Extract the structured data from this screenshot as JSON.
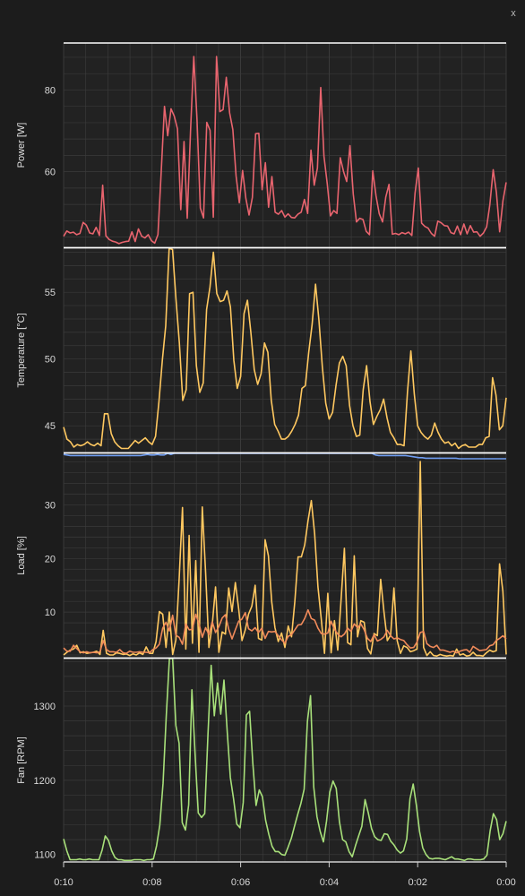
{
  "window": {
    "close_label": "x"
  },
  "colors": {
    "background": "#222222",
    "grid": "#3a3a3a",
    "frame": "#ffffff",
    "power": "#e8646e",
    "temperature": "#ffc860",
    "load_gpu": "#ffc860",
    "load_cpu": "#f08a5a",
    "load_top": "#6f9cf0",
    "fan": "#a8e07a"
  },
  "chart_data": [
    {
      "type": "line",
      "ylabel": "Power [W]",
      "yticks": [
        60,
        80
      ],
      "ylim": [
        41.5,
        91.5
      ],
      "xlim": [
        10,
        0
      ],
      "series": [
        {
          "values": [
            44.2,
            45.5,
            45.0,
            45.2,
            44.6,
            44.9,
            47.6,
            46.9,
            45.0,
            44.8,
            46.4,
            44.4,
            56.7,
            44.3,
            43.4,
            43.0,
            42.8,
            42.4,
            42.7,
            42.9,
            43.0,
            45.3,
            42.9,
            46.0,
            44.2,
            43.8,
            44.6,
            43.1,
            42.5,
            44.6,
            60.2,
            76.0,
            68.8,
            75.4,
            73.6,
            70.5,
            50.7,
            67.4,
            48.6,
            70.1,
            88.2,
            72.8,
            51.1,
            48.7,
            72.1,
            70.1,
            48.9,
            88.2,
            74.7,
            75.2,
            83.1,
            74.4,
            70.3,
            59.0,
            52.4,
            60.3,
            53.5,
            49.4,
            53.7,
            69.3,
            69.4,
            55.6,
            62.2,
            51.3,
            58.8,
            50.1,
            49.6,
            50.5,
            48.9,
            49.7,
            48.8,
            48.7,
            49.6,
            50.1,
            53.2,
            49.8,
            65.3,
            56.7,
            60.9,
            80.6,
            63.8,
            57.2,
            49.2,
            50.5,
            49.8,
            63.4,
            60.1,
            57.6,
            66.4,
            54.5,
            47.7,
            48.6,
            48.3,
            45.4,
            44.6,
            60.2,
            54.1,
            49.7,
            47.7,
            53.8,
            56.9,
            44.7,
            44.9,
            44.6,
            45.1,
            44.8,
            45.2,
            44.4,
            54.8,
            60.9,
            47.4,
            46.6,
            46.2,
            44.9,
            44.2,
            47.9,
            47.5,
            46.8,
            46.7,
            45.1,
            44.8,
            46.7,
            44.6,
            47.2,
            44.8,
            46.8,
            45.2,
            45.3,
            44.2,
            45.0,
            46.5,
            52.0,
            60.5,
            54.9,
            45.3,
            52.9,
            57.4
          ]
        }
      ]
    },
    {
      "type": "line",
      "ylabel": "Temperature [°C]",
      "yticks": [
        45,
        50,
        55
      ],
      "ylim": [
        43.0,
        58.3
      ],
      "xlim": [
        10,
        0
      ],
      "series": [
        {
          "values": [
            44.9,
            44.0,
            43.8,
            43.4,
            43.6,
            43.5,
            43.6,
            43.8,
            43.6,
            43.5,
            43.7,
            43.5,
            45.9,
            45.9,
            44.4,
            43.8,
            43.5,
            43.3,
            43.3,
            43.3,
            43.6,
            43.9,
            43.7,
            43.9,
            44.1,
            43.8,
            43.6,
            44.2,
            46.8,
            49.9,
            52.5,
            58.9,
            58.2,
            54.5,
            51.2,
            46.9,
            47.7,
            54.9,
            55.0,
            49.5,
            47.5,
            48.2,
            53.7,
            55.4,
            58.0,
            54.9,
            54.3,
            54.4,
            55.1,
            53.9,
            49.9,
            47.8,
            48.7,
            53.4,
            54.4,
            52.0,
            49.2,
            48.1,
            48.9,
            51.2,
            50.5,
            46.9,
            45.1,
            44.6,
            44.0,
            44.0,
            44.2,
            44.6,
            45.1,
            45.8,
            47.8,
            48.0,
            50.5,
            52.6,
            55.6,
            52.9,
            49.4,
            46.7,
            45.5,
            46.0,
            48.0,
            49.7,
            50.2,
            49.5,
            46.5,
            45.0,
            44.2,
            44.3,
            47.7,
            49.5,
            46.8,
            45.1,
            45.7,
            46.2,
            47.0,
            45.6,
            44.5,
            44.1,
            43.6,
            43.6,
            43.5,
            47.5,
            50.6,
            47.4,
            45.0,
            44.5,
            44.2,
            44.0,
            44.3,
            45.2,
            44.5,
            44.0,
            43.7,
            43.8,
            43.5,
            43.7,
            43.3,
            43.5,
            43.6,
            43.4,
            43.4,
            43.4,
            43.6,
            43.6,
            44.1,
            44.2,
            48.6,
            47.3,
            44.7,
            45.0,
            47.1
          ]
        }
      ]
    },
    {
      "type": "line",
      "ylabel": "Load [%]",
      "yticks": [
        10,
        20,
        30
      ],
      "ylim": [
        1.5,
        39.6
      ],
      "xlim": [
        10,
        0
      ],
      "series": [
        {
          "values": [
            39.4,
            39.3,
            39.2,
            39.2,
            39.2,
            39.2,
            39.2,
            39.2,
            39.2,
            39.2,
            39.2,
            39.2,
            39.2,
            39.2,
            39.2,
            39.2,
            39.2,
            39.2,
            39.2,
            39.2,
            39.2,
            39.2,
            39.2,
            39.2,
            39.3,
            39.4,
            39.3,
            39.3,
            39.4,
            39.3,
            39.3,
            39.6,
            39.4,
            39.8,
            39.9,
            39.8,
            39.6,
            39.8,
            40.0,
            39.9,
            39.7,
            39.8,
            39.8,
            40.0,
            40.0,
            39.9,
            39.9,
            39.9,
            39.9,
            39.8,
            39.8,
            39.8,
            39.8,
            40.0,
            40.0,
            39.9,
            39.9,
            39.8,
            40.0,
            40.0,
            40.0,
            39.9,
            39.9,
            40.0,
            39.8,
            39.9,
            39.9,
            39.9,
            39.9,
            39.9,
            39.9,
            39.9,
            39.9,
            39.9,
            39.9,
            39.9,
            39.9,
            39.9,
            39.9,
            39.9,
            39.9,
            39.9,
            39.9,
            39.9,
            39.9,
            39.9,
            39.9,
            39.9,
            39.9,
            39.9,
            39.9,
            39.6,
            39.6,
            39.3,
            39.2,
            39.2,
            39.2,
            39.2,
            39.2,
            39.2,
            39.2,
            39.2,
            39.2,
            39.1,
            39.0,
            38.9,
            38.8,
            38.8,
            38.7,
            38.7,
            38.7,
            38.7,
            38.7,
            38.7,
            38.7,
            38.7,
            38.7,
            38.7,
            38.6,
            38.6,
            38.6,
            38.6,
            38.6,
            38.6,
            38.6,
            38.6,
            38.6,
            38.6,
            38.6,
            38.6,
            38.6,
            38.6,
            38.6
          ]
        },
        {
          "values": [
            2.0,
            2.5,
            2.9,
            3.1,
            3.8,
            2.4,
            2.6,
            2.3,
            2.4,
            2.5,
            2.7,
            2.1,
            6.6,
            2.3,
            2.0,
            2.0,
            2.4,
            2.3,
            2.1,
            2.2,
            1.9,
            2.2,
            2.0,
            2.4,
            2.1,
            3.5,
            2.3,
            2.3,
            4.5,
            10.1,
            9.6,
            3.4,
            10.0,
            2.1,
            4.8,
            16.3,
            29.5,
            3.1,
            24.3,
            4.2,
            19.6,
            2.5,
            29.6,
            17.4,
            3.4,
            7.6,
            14.7,
            2.5,
            6.3,
            5.9,
            14.5,
            10.1,
            15.5,
            10.6,
            4.7,
            6.7,
            9.6,
            11.1,
            15.0,
            5.1,
            4.8,
            23.5,
            20.5,
            11.9,
            7.1,
            4.5,
            6.1,
            3.4,
            7.4,
            5.4,
            12.0,
            20.3,
            20.3,
            22.5,
            27.0,
            30.8,
            24.6,
            14.7,
            8.7,
            2.3,
            13.5,
            2.4,
            8.4,
            2.9,
            12.3,
            21.9,
            4.3,
            3.9,
            20.5,
            5.4,
            8.4,
            8.1,
            3.2,
            2.2,
            6.0,
            5.6,
            16.1,
            10.0,
            4.7,
            5.7,
            14.5,
            4.7,
            2.3,
            3.7,
            3.4,
            2.6,
            2.8,
            3.1,
            38.1,
            3.4,
            1.9,
            2.6,
            1.9,
            1.8,
            2.1,
            1.9,
            1.8,
            1.9,
            1.8,
            3.1,
            2.0,
            2.2,
            1.8,
            1.9,
            2.5,
            1.9,
            1.9,
            1.8,
            2.4,
            2.9,
            2.6,
            2.8,
            19.0,
            13.9,
            2.1
          ]
        },
        {
          "values": [
            3.3,
            2.7,
            2.7,
            3.8,
            3.2,
            2.6,
            2.4,
            2.6,
            2.4,
            2.5,
            2.4,
            2.6,
            4.7,
            3.0,
            2.6,
            2.6,
            2.5,
            3.0,
            2.4,
            2.3,
            2.7,
            2.5,
            2.5,
            2.6,
            2.5,
            2.5,
            2.4,
            3.0,
            3.3,
            4.0,
            7.0,
            8.1,
            6.5,
            9.4,
            5.7,
            5.3,
            4.0,
            7.8,
            6.7,
            6.8,
            9.6,
            7.9,
            5.3,
            7.1,
            5.8,
            8.2,
            6.2,
            7.3,
            8.9,
            9.5,
            6.8,
            5.0,
            6.7,
            8.3,
            8.7,
            9.9,
            6.9,
            6.5,
            7.1,
            6.2,
            7.0,
            5.1,
            6.4,
            6.3,
            6.4,
            5.6,
            4.8,
            4.2,
            5.5,
            5.8,
            6.7,
            7.6,
            7.7,
            8.8,
            10.4,
            8.8,
            8.5,
            7.0,
            6.0,
            5.9,
            6.1,
            8.3,
            6.8,
            5.9,
            5.4,
            5.9,
            7.0,
            6.4,
            7.8,
            7.1,
            7.8,
            6.7,
            5.1,
            4.5,
            5.8,
            4.6,
            4.9,
            5.4,
            6.6,
            5.6,
            5.0,
            5.2,
            4.9,
            4.7,
            3.9,
            3.3,
            3.4,
            4.4,
            6.2,
            6.4,
            4.1,
            3.6,
            3.4,
            3.8,
            2.9,
            2.9,
            2.7,
            2.5,
            2.7,
            2.4,
            2.7,
            2.9,
            3.0,
            2.5,
            3.6,
            3.2,
            2.8,
            2.9,
            3.0,
            3.7,
            3.9,
            4.7,
            5.1,
            5.6,
            5.0
          ]
        }
      ]
    },
    {
      "type": "line",
      "ylabel": "Fan [RPM]",
      "yticks": [
        1100,
        1200,
        1300
      ],
      "ylim": [
        1090,
        1364
      ],
      "xlim": [
        10,
        0
      ],
      "xticks": [
        "0:10",
        "0:08",
        "0:06",
        "0:04",
        "0:02",
        "0:00"
      ],
      "series": [
        {
          "values": [
            1121,
            1105,
            1093,
            1093,
            1093,
            1094,
            1093,
            1093,
            1094,
            1093,
            1093,
            1093,
            1106,
            1125,
            1119,
            1105,
            1096,
            1093,
            1093,
            1092,
            1092,
            1092,
            1093,
            1093,
            1093,
            1092,
            1093,
            1093,
            1094,
            1112,
            1140,
            1196,
            1287,
            1367,
            1375,
            1274,
            1250,
            1143,
            1133,
            1167,
            1322,
            1234,
            1156,
            1150,
            1155,
            1261,
            1355,
            1287,
            1331,
            1289,
            1335,
            1266,
            1204,
            1175,
            1141,
            1136,
            1170,
            1288,
            1293,
            1223,
            1166,
            1187,
            1178,
            1146,
            1127,
            1111,
            1104,
            1104,
            1100,
            1099,
            1110,
            1122,
            1138,
            1154,
            1169,
            1188,
            1279,
            1314,
            1191,
            1151,
            1131,
            1117,
            1145,
            1184,
            1199,
            1189,
            1144,
            1120,
            1117,
            1104,
            1097,
            1112,
            1125,
            1138,
            1174,
            1156,
            1135,
            1124,
            1120,
            1119,
            1128,
            1127,
            1118,
            1113,
            1106,
            1102,
            1105,
            1121,
            1175,
            1195,
            1166,
            1131,
            1109,
            1100,
            1095,
            1094,
            1095,
            1095,
            1094,
            1093,
            1095,
            1097,
            1094,
            1094,
            1093,
            1092,
            1094,
            1094,
            1093,
            1093,
            1093,
            1094,
            1099,
            1132,
            1155,
            1147,
            1120,
            1128,
            1145
          ]
        }
      ]
    }
  ]
}
